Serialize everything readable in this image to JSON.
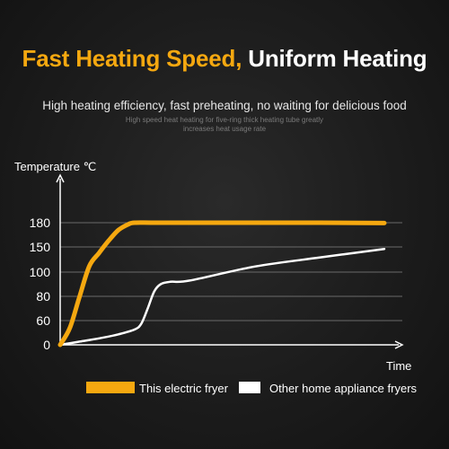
{
  "header": {
    "title_part1": "Fast Heating Speed,",
    "title_part2": "Uniform Heating",
    "subtitle": "High heating efficiency, fast preheating, no waiting for delicious food",
    "note_line1": "High speed heat heating for five-ring thick heating tube greatly",
    "note_line2": "increases heat usage rate"
  },
  "colors": {
    "accent": "#f5a810",
    "secondary": "#ffffff",
    "axis": "#ffffff",
    "grid": "#6a6a6a"
  },
  "chart_data": {
    "type": "line",
    "title": "",
    "ylabel": "Temperature ℃",
    "xlabel": "Time",
    "yticks": [
      0,
      60,
      80,
      100,
      150,
      180
    ],
    "grid": true,
    "legend": "bottom",
    "series": [
      {
        "name": "This electric fryer",
        "color": "#f5a810",
        "points": [
          [
            0,
            0
          ],
          [
            3,
            42
          ],
          [
            6,
            80
          ],
          [
            9,
            112
          ],
          [
            12,
            138
          ],
          [
            15,
            158
          ],
          [
            18,
            171
          ],
          [
            21,
            178
          ],
          [
            23,
            180
          ],
          [
            30,
            180
          ],
          [
            50,
            180
          ],
          [
            80,
            180
          ],
          [
            100,
            179.5
          ]
        ]
      },
      {
        "name": "Other home appliance fryers",
        "color": "#ffffff",
        "points": [
          [
            0,
            0
          ],
          [
            6,
            8
          ],
          [
            12,
            16
          ],
          [
            18,
            26
          ],
          [
            23,
            38
          ],
          [
            25,
            52
          ],
          [
            27,
            70
          ],
          [
            29,
            84
          ],
          [
            31,
            90
          ],
          [
            34,
            92
          ],
          [
            40,
            93
          ],
          [
            60,
            111
          ],
          [
            80,
            129
          ],
          [
            100,
            146
          ]
        ]
      }
    ]
  }
}
